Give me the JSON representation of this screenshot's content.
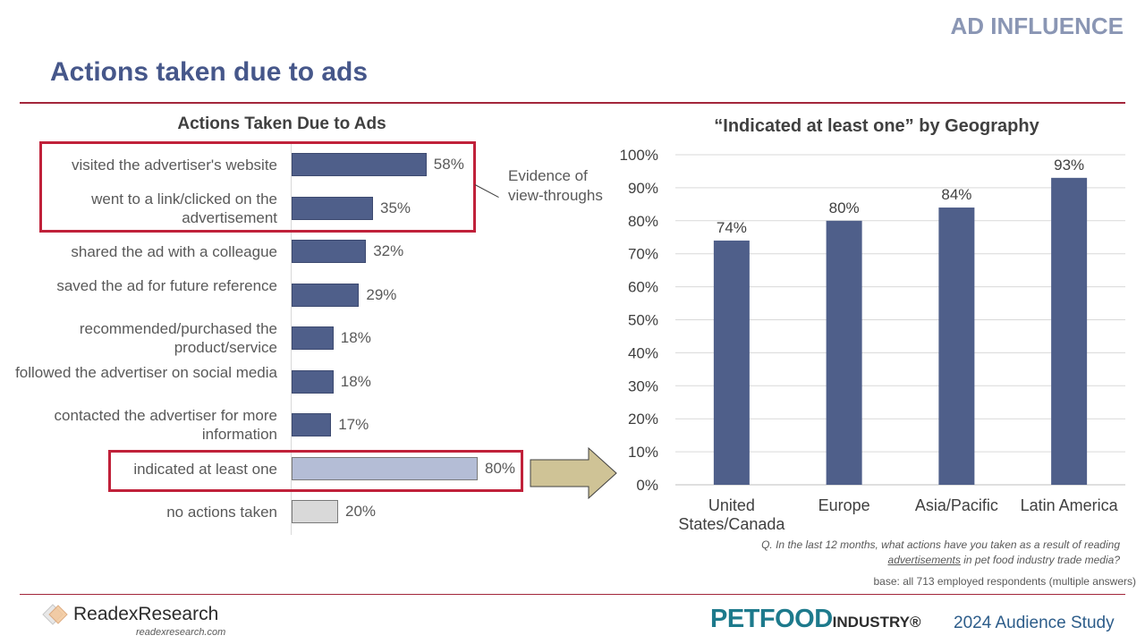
{
  "header": {
    "section_label": "AD INFLUENCE",
    "title": "Actions taken due to ads"
  },
  "callout": {
    "text": "Evidence of view-throughs"
  },
  "chart_data": [
    {
      "type": "bar",
      "orientation": "horizontal",
      "title": "Actions Taken Due to Ads",
      "categories": [
        "visited the advertiser's website",
        "went to a link/clicked on the advertisement",
        "shared the ad with a colleague",
        "saved the ad for future reference",
        "recommended/purchased the product/service",
        "followed the advertiser on social media",
        "contacted the advertiser for more information",
        "indicated at least one",
        "no actions taken"
      ],
      "values": [
        58,
        35,
        32,
        29,
        18,
        18,
        17,
        80,
        20
      ],
      "value_labels": [
        "58%",
        "35%",
        "32%",
        "29%",
        "18%",
        "18%",
        "17%",
        "80%",
        "20%"
      ],
      "colors": [
        "#4f5f8a",
        "#4f5f8a",
        "#4f5f8a",
        "#4f5f8a",
        "#4f5f8a",
        "#4f5f8a",
        "#4f5f8a",
        "#b4bdd6",
        "#d9d9d9"
      ],
      "xlim": [
        0,
        100
      ],
      "grid": false
    },
    {
      "type": "bar",
      "title": "“Indicated at least one” by Geography",
      "categories": [
        "United States/Canada",
        "Europe",
        "Asia/Pacific",
        "Latin America"
      ],
      "values": [
        74,
        80,
        84,
        93
      ],
      "value_labels": [
        "74%",
        "80%",
        "84%",
        "93%"
      ],
      "ylim": [
        0,
        100
      ],
      "y_ticks": [
        "0%",
        "10%",
        "20%",
        "30%",
        "40%",
        "50%",
        "60%",
        "70%",
        "80%",
        "90%",
        "100%"
      ],
      "color": "#4f5f8a",
      "grid": true
    }
  ],
  "footer": {
    "question_prefix": "Q. In the last 12 months, what actions have you taken as a result of reading ",
    "question_underlined": "advertisements",
    "question_suffix": " in pet food industry trade media?",
    "base": "base: all 713 employed respondents (multiple answers)",
    "readex_name": "ReadexResearch",
    "readex_url": "readexresearch.com",
    "brand_big": "PETFOOD",
    "brand_small": "INDUSTRY",
    "brand_mark": "®",
    "study": "2024 Audience Study"
  }
}
